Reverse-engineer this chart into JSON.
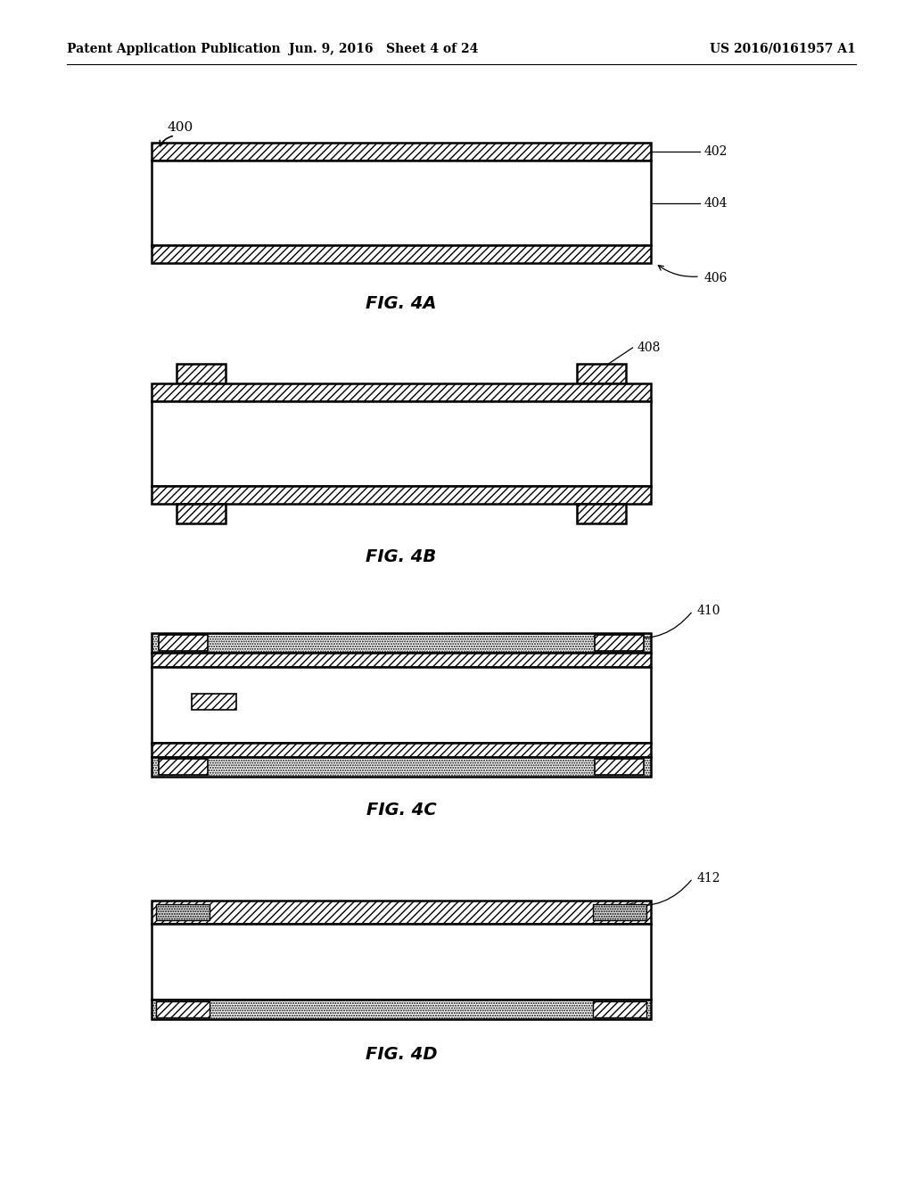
{
  "header_left": "Patent Application Publication",
  "header_mid": "Jun. 9, 2016   Sheet 4 of 24",
  "header_right": "US 2016/0161957 A1",
  "fig4a": {
    "label": "FIG. 4A",
    "ref_400": "400",
    "ref_402": "402",
    "ref_404": "404",
    "ref_406": "406"
  },
  "fig4b": {
    "label": "FIG. 4B",
    "ref_408": "408"
  },
  "fig4c": {
    "label": "FIG. 4C",
    "ref_410": "410"
  },
  "fig4d": {
    "label": "FIG. 4D",
    "ref_412": "412"
  },
  "bg_color": "#ffffff",
  "line_color": "#000000"
}
